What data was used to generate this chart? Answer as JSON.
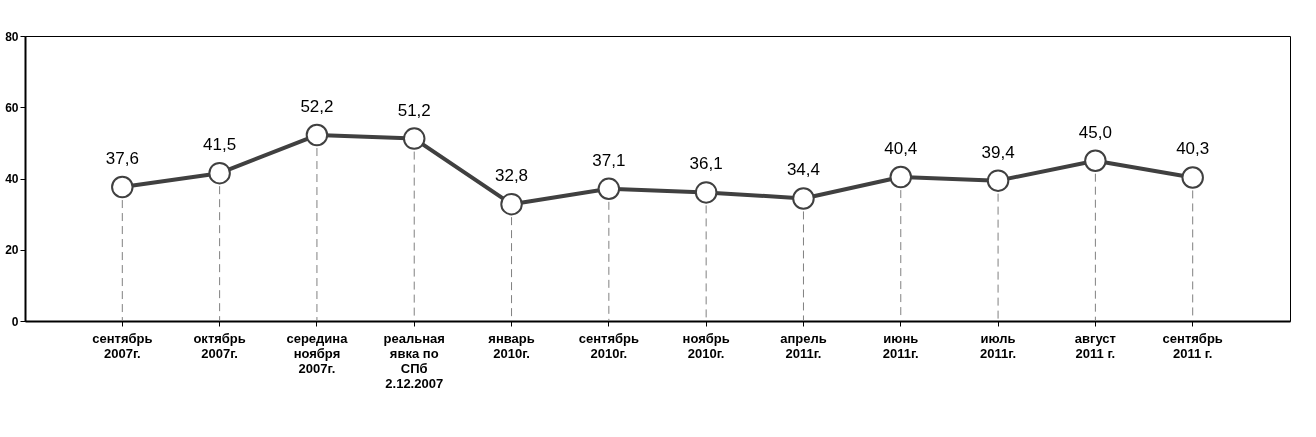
{
  "chart_data": {
    "type": "line",
    "categories": [
      "сентябрь\n2007г.",
      "октябрь\n2007г.",
      "середина\nноября\n2007г.",
      "реальная\nявка по\nСПб\n2.12.2007",
      "январь\n2010г.",
      "сентябрь\n2010г.",
      "ноябрь\n2010г.",
      "апрель\n2011г.",
      "июнь\n2011г.",
      "июль\n2011г.",
      "август\n2011 г.",
      "сентябрь\n2011 г."
    ],
    "series": [
      {
        "color": "#404040",
        "values": [
          37.6,
          41.5,
          52.2,
          51.2,
          32.8,
          37.1,
          36.1,
          34.4,
          40.4,
          39.4,
          45.0,
          40.3
        ],
        "value_labels": [
          "37,6",
          "41,5",
          "52,2",
          "51,2",
          "32,8",
          "37,1",
          "36,1",
          "34,4",
          "40,4",
          "39,4",
          "45,0",
          "40,3"
        ]
      }
    ],
    "ylim": [
      0,
      80
    ],
    "yticks": [
      0,
      20,
      40,
      60,
      80
    ],
    "grid": false,
    "marker": "circle",
    "line_style": "solid"
  }
}
